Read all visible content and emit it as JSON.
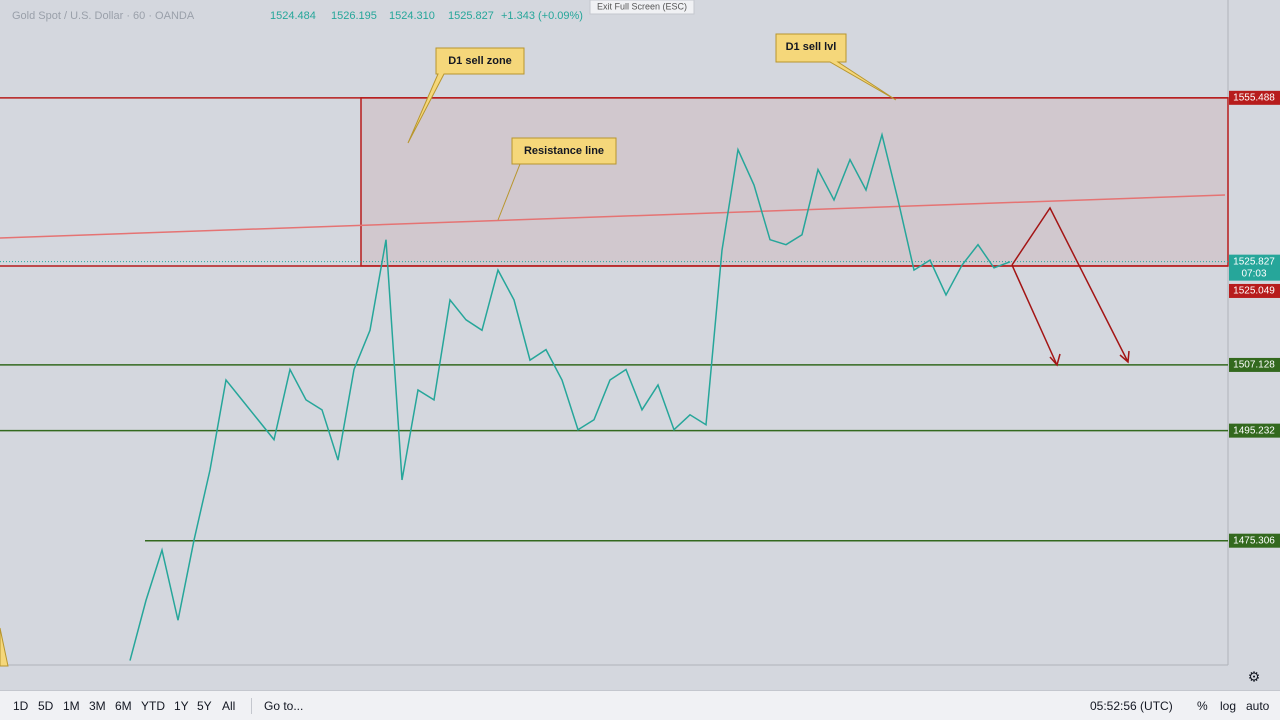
{
  "header": {
    "symbol": "Gold Spot / U.S. Dollar · 60 · OANDA",
    "ohlc": [
      "1524.484",
      "1526.195",
      "1524.310",
      "1525.827"
    ],
    "change": "+1.343 (+0.09%)"
  },
  "fullscreen": "Exit Full Screen (ESC)",
  "chart_data": {
    "type": "line",
    "color": "#26a69a",
    "ylim": [
      1452.8,
      1573.2
    ],
    "values": [
      1453.6,
      1464.5,
      1473.6,
      1460.9,
      1475.4,
      1488.1,
      1504.4,
      1500.8,
      1497.2,
      1493.6,
      1506.3,
      1500.8,
      1499.0,
      1489.9,
      1506.3,
      1513.4,
      1529.8,
      1486.3,
      1502.6,
      1500.8,
      1518.9,
      1515.3,
      1513.4,
      1524.3,
      1518.9,
      1508.0,
      1509.9,
      1504.4,
      1495.4,
      1497.2,
      1504.4,
      1506.3,
      1499.0,
      1503.5,
      1495.4,
      1498.1,
      1496.3,
      1527.9,
      1546.1,
      1539.7,
      1529.8,
      1528.9,
      1530.7,
      1542.5,
      1537.0,
      1544.3,
      1538.8,
      1548.8,
      1537.0,
      1524.3,
      1526.1,
      1519.8,
      1525.2,
      1528.9,
      1524.7,
      1525.8
    ],
    "levels": [
      {
        "value": 1555.488,
        "color": "#b71c1c"
      },
      {
        "value": 1525.049,
        "color": "#b71c1c"
      },
      {
        "value": 1507.128,
        "color": "#33691e"
      },
      {
        "value": 1495.232,
        "color": "#33691e"
      },
      {
        "value": 1475.306,
        "color": "#33691e"
      }
    ],
    "last_price": 1525.827,
    "countdown": "07:03",
    "annotations": [
      "D1 sell zone",
      "Resistance line",
      "D1 sell lvl"
    ]
  },
  "toolbar": {
    "ranges": [
      "1D",
      "5D",
      "1M",
      "3M",
      "6M",
      "YTD",
      "1Y",
      "5Y",
      "All"
    ],
    "goto": "Go to...",
    "time": "05:52:56 (UTC)",
    "options": [
      "%",
      "log",
      "auto"
    ]
  }
}
